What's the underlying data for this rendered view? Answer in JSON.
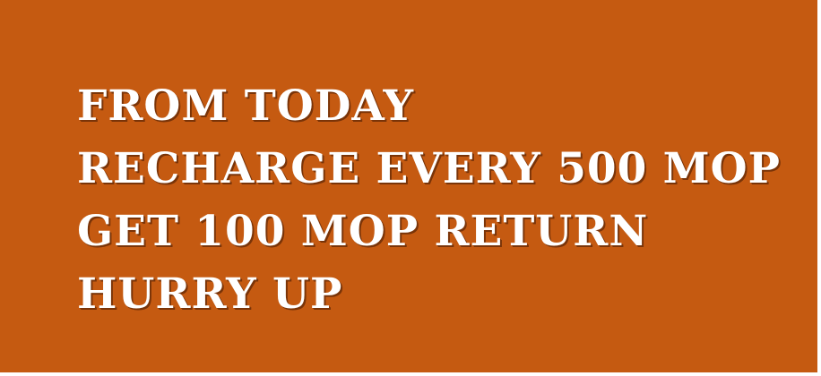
{
  "banner": {
    "background_color": "#c55a11",
    "text_color": "#ffffff",
    "lines": [
      "FROM TODAY",
      "RECHARGE EVERY 500 MOP",
      "GET 100 MOP RETURN",
      "HURRY UP"
    ]
  }
}
